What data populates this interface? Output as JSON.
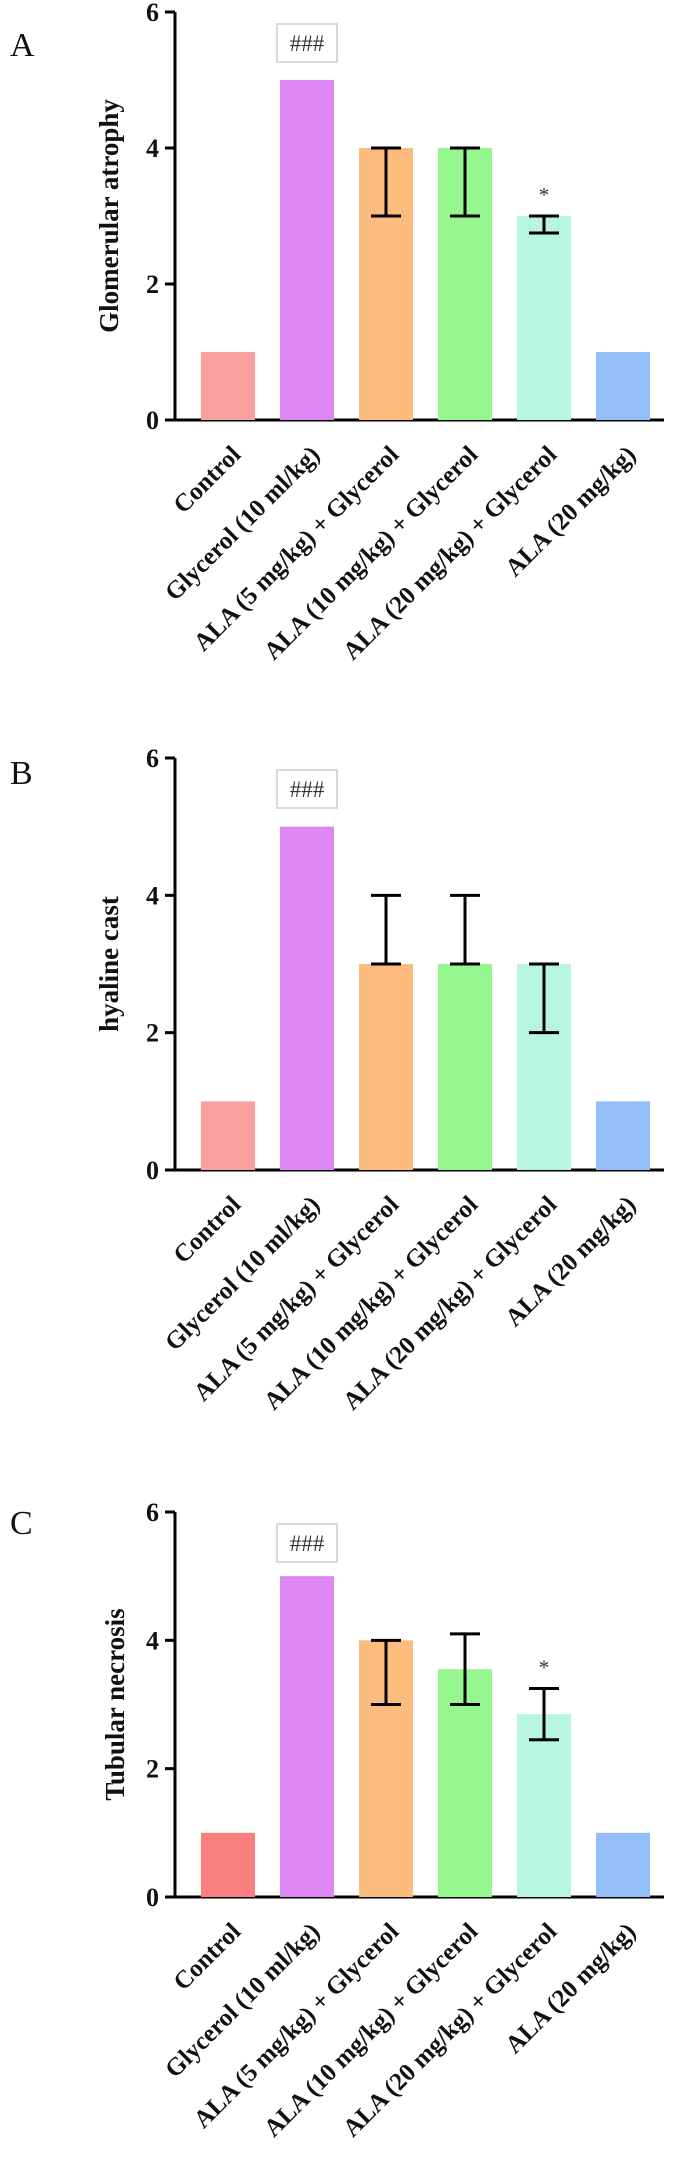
{
  "figure": {
    "panels": [
      "A",
      "B",
      "C"
    ]
  },
  "chart_data": [
    {
      "type": "bar",
      "panel": "A",
      "title": "",
      "xlabel": "",
      "ylabel": "Glomerular atrophy",
      "ylim": [
        0,
        6
      ],
      "yticks": [
        0,
        2,
        4,
        6
      ],
      "categories": [
        "Control",
        "Glycerol (10 ml/kg)",
        "ALA (5 mg/kg) + Glycerol",
        "ALA (10 mg/kg) + Glycerol",
        "ALA (20 mg/kg) + Glycerol",
        "ALA (20 mg/kg)"
      ],
      "values": [
        1,
        5,
        4,
        4,
        3,
        1
      ],
      "err_low": [
        null,
        null,
        3,
        3,
        2.75,
        null
      ],
      "err_high": [
        null,
        null,
        4,
        4,
        3,
        null
      ],
      "colors": [
        "#f9a0a0",
        "#dd88f2",
        "#fbbc7e",
        "#96f78f",
        "#b6f6de",
        "#93bef7"
      ],
      "annotations": [
        {
          "index": 1,
          "text": "###",
          "boxed": true
        },
        {
          "index": 4,
          "text": "*",
          "boxed": false
        }
      ]
    },
    {
      "type": "bar",
      "panel": "B",
      "title": "",
      "xlabel": "",
      "ylabel": "hyaline cast",
      "ylim": [
        0,
        6
      ],
      "yticks": [
        0,
        2,
        4,
        6
      ],
      "categories": [
        "Control",
        "Glycerol (10 ml/kg)",
        "ALA (5 mg/kg) + Glycerol",
        "ALA (10 mg/kg) + Glycerol",
        "ALA (20 mg/kg) + Glycerol",
        "ALA (20 mg/kg)"
      ],
      "values": [
        1,
        5,
        3,
        3,
        3,
        1
      ],
      "err_low": [
        null,
        null,
        3,
        3,
        2,
        null
      ],
      "err_high": [
        null,
        null,
        4,
        4,
        3,
        null
      ],
      "colors": [
        "#f9a0a0",
        "#dd88f2",
        "#fbbc7e",
        "#96f78f",
        "#b6f6de",
        "#93bef7"
      ],
      "annotations": [
        {
          "index": 1,
          "text": "###",
          "boxed": true
        }
      ]
    },
    {
      "type": "bar",
      "panel": "C",
      "title": "",
      "xlabel": "",
      "ylabel": "Tubular necrosis",
      "ylim": [
        0,
        6
      ],
      "yticks": [
        0,
        2,
        4,
        6
      ],
      "categories": [
        "Control",
        "Glycerol (10 ml/kg)",
        "ALA (5 mg/kg) + Glycerol",
        "ALA (10 mg/kg) + Glycerol",
        "ALA (20 mg/kg) + Glycerol",
        "ALA (20 mg/kg)"
      ],
      "values": [
        1,
        5,
        4,
        3.55,
        2.85,
        1
      ],
      "err_low": [
        null,
        null,
        3,
        3,
        2.45,
        null
      ],
      "err_high": [
        null,
        null,
        4,
        4.1,
        3.25,
        null
      ],
      "colors": [
        "#fa7f7f",
        "#dd88f2",
        "#fbbc7e",
        "#96f78f",
        "#b6f6de",
        "#93bef7"
      ],
      "annotations": [
        {
          "index": 1,
          "text": "###",
          "boxed": true
        },
        {
          "index": 4,
          "text": "*",
          "boxed": false
        }
      ]
    }
  ]
}
